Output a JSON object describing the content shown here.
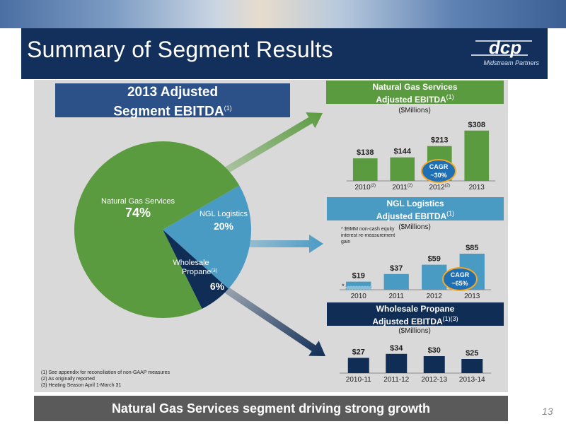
{
  "page": {
    "title": "Summary of Segment Results",
    "logo_name": "dcp",
    "logo_sub": "Midstream Partners",
    "page_number": "13",
    "bottom_banner": "Natural Gas Services segment driving strong growth"
  },
  "summary_box": {
    "line1": "2013 Adjusted",
    "line2": "Segment EBITDA",
    "sup": "(1)"
  },
  "footnotes": [
    "(1) See appendix for reconciliation of non-GAAP measures",
    "(2)  As originally reported",
    "(3)  Heating Season April 1-March 31"
  ],
  "chart_data": [
    {
      "type": "pie",
      "title": "2013 Adjusted Segment EBITDA",
      "slices": [
        {
          "label": "Natural Gas Services",
          "value": 74,
          "value_label": "74%",
          "color": "#5b9b3f"
        },
        {
          "label": "NGL Logistics",
          "value": 20,
          "value_label": "20%",
          "color": "#4a9bc4"
        },
        {
          "label": "Wholesale Propane",
          "label_sup": "(3)",
          "value": 6,
          "value_label": "6%",
          "color": "#0f2d55"
        }
      ]
    },
    {
      "type": "bar",
      "title": "Natural Gas Services Adjusted EBITDA",
      "title_line1": "Natural Gas Services",
      "title_line2": "Adjusted EBITDA",
      "title_sup": "(1)",
      "unit": "($Millions)",
      "color": "#5b9b3f",
      "header_color": "#5b9b3f",
      "categories": [
        "2010",
        "2011",
        "2012",
        "2013"
      ],
      "category_sups": [
        "(2)",
        "(2)",
        "(2)",
        ""
      ],
      "values": [
        138,
        144,
        213,
        308
      ],
      "value_labels": [
        "$138",
        "$144",
        "$213",
        "$308"
      ],
      "ylim": [
        0,
        320
      ],
      "annotation": {
        "line1": "CAGR",
        "line2": "~30%"
      }
    },
    {
      "type": "bar",
      "title": "NGL Logistics Adjusted EBITDA",
      "title_line1": "NGL Logistics",
      "title_line2": "Adjusted EBITDA",
      "title_sup": "(1)",
      "unit": "($Millions)",
      "note": "* $9MM non-cash equity interest re-measurement gain",
      "note_marker": "*",
      "color": "#4a9bc4",
      "header_color": "#4a9bc4",
      "categories": [
        "2010",
        "2011",
        "2012",
        "2013"
      ],
      "values": [
        19,
        37,
        59,
        85
      ],
      "non_cash_2010": 9,
      "value_labels": [
        "$19",
        "$37",
        "$59",
        "$85"
      ],
      "ylim": [
        0,
        90
      ],
      "annotation": {
        "line1": "CAGR",
        "line2": "~65%"
      }
    },
    {
      "type": "bar",
      "title": "Wholesale Propane Adjusted EBITDA",
      "title_line1": "Wholesale Propane",
      "title_line2": "Adjusted EBITDA",
      "title_sup": "(1)(3)",
      "unit": "($Millions)",
      "color": "#0f2d55",
      "header_color": "#0f2d55",
      "categories": [
        "2010-11",
        "2011-12",
        "2012-13",
        "2013-14"
      ],
      "values": [
        27,
        34,
        30,
        25
      ],
      "value_labels": [
        "$27",
        "$34",
        "$30",
        "$25"
      ],
      "ylim": [
        0,
        40
      ]
    }
  ],
  "colors": {
    "title_bar": "#13305c",
    "panel": "#d9d9d9",
    "cagr_badge": "#1f6fb5",
    "cagr_badge_border": "#f5a623"
  }
}
